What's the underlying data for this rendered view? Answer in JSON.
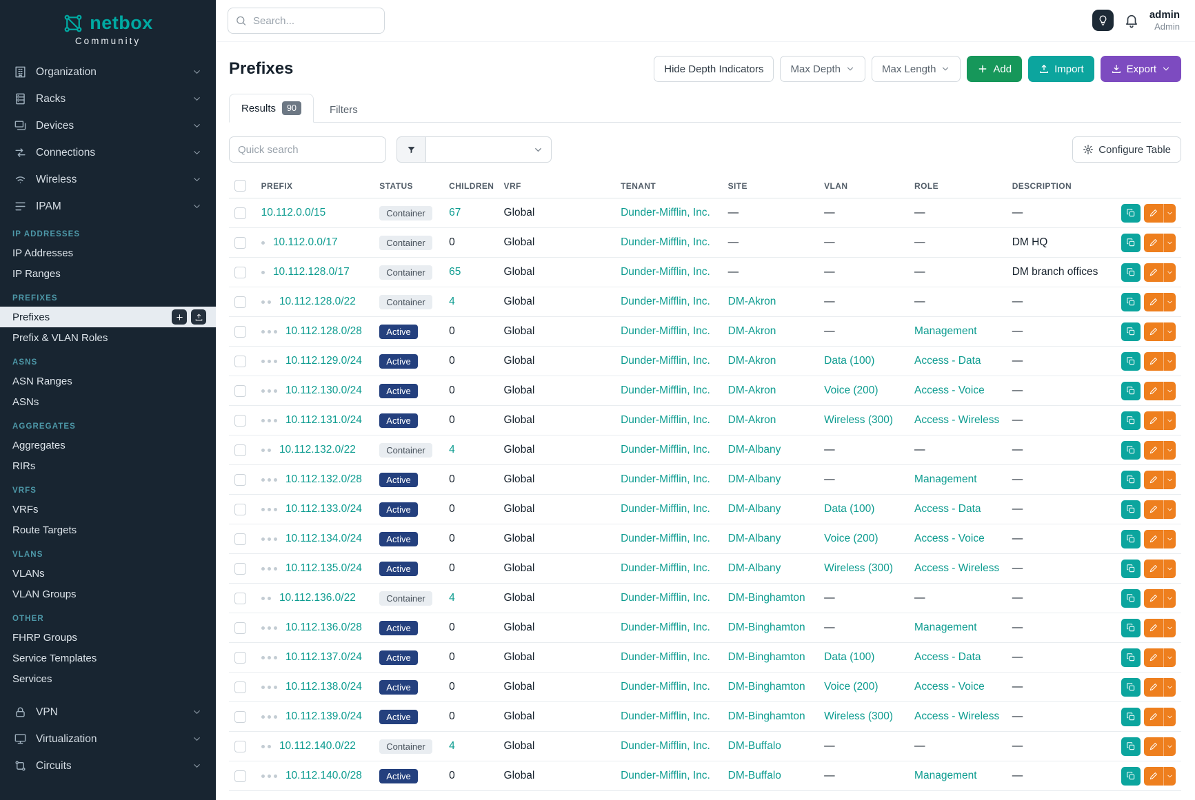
{
  "colors": {
    "brand_teal": "#00a9a2",
    "link_teal": "#0d9c90",
    "add_green": "#16975a",
    "import_teal": "#0ca59e",
    "export_purple": "#7d4bc0",
    "active_badge": "#24407e",
    "edit_orange": "#ee7f1e",
    "section_teal": "#4d98a8"
  },
  "sidebar": {
    "logo_text": "netbox",
    "logo_subtext": "Community",
    "top_nav": [
      {
        "label": "Organization",
        "icon": "building-icon"
      },
      {
        "label": "Racks",
        "icon": "rack-icon"
      },
      {
        "label": "Devices",
        "icon": "devices-icon"
      },
      {
        "label": "Connections",
        "icon": "connections-icon"
      },
      {
        "label": "Wireless",
        "icon": "wireless-icon"
      },
      {
        "label": "IPAM",
        "icon": "ipam-icon"
      }
    ],
    "sections": [
      {
        "title": "IP ADDRESSES",
        "items": [
          {
            "label": "IP Addresses"
          },
          {
            "label": "IP Ranges"
          }
        ]
      },
      {
        "title": "PREFIXES",
        "items": [
          {
            "label": "Prefixes",
            "active": true,
            "quick_actions": [
              "plus-icon",
              "upload-icon"
            ]
          },
          {
            "label": "Prefix & VLAN Roles"
          }
        ]
      },
      {
        "title": "ASNS",
        "items": [
          {
            "label": "ASN Ranges"
          },
          {
            "label": "ASNs"
          }
        ]
      },
      {
        "title": "AGGREGATES",
        "items": [
          {
            "label": "Aggregates"
          },
          {
            "label": "RIRs"
          }
        ]
      },
      {
        "title": "VRFS",
        "items": [
          {
            "label": "VRFs"
          },
          {
            "label": "Route Targets"
          }
        ]
      },
      {
        "title": "VLANS",
        "items": [
          {
            "label": "VLANs"
          },
          {
            "label": "VLAN Groups"
          }
        ]
      },
      {
        "title": "OTHER",
        "items": [
          {
            "label": "FHRP Groups"
          },
          {
            "label": "Service Templates"
          },
          {
            "label": "Services"
          }
        ]
      }
    ],
    "bottom_nav": [
      {
        "label": "VPN",
        "icon": "vpn-icon"
      },
      {
        "label": "Virtualization",
        "icon": "virtualization-icon"
      },
      {
        "label": "Circuits",
        "icon": "circuits-icon"
      }
    ]
  },
  "topbar": {
    "search_placeholder": "Search...",
    "username": "admin",
    "role": "Admin"
  },
  "page": {
    "title": "Prefixes",
    "buttons": {
      "hide_depth": "Hide Depth Indicators",
      "max_depth": "Max Depth",
      "max_length": "Max Length",
      "add": "Add",
      "import": "Import",
      "export": "Export"
    },
    "tabs": [
      {
        "label": "Results",
        "badge": "90",
        "active": true
      },
      {
        "label": "Filters"
      }
    ],
    "quick_search_placeholder": "Quick search",
    "configure_table": "Configure Table"
  },
  "table": {
    "columns": [
      "PREFIX",
      "STATUS",
      "CHILDREN",
      "VRF",
      "TENANT",
      "SITE",
      "VLAN",
      "ROLE",
      "DESCRIPTION"
    ],
    "rows": [
      {
        "depth": 0,
        "prefix": "10.112.0.0/15",
        "status": "Container",
        "children": "67",
        "vrf": "Global",
        "tenant": "Dunder-Mifflin, Inc.",
        "site": "—",
        "vlan": "—",
        "role": "—",
        "description": "—"
      },
      {
        "depth": 1,
        "prefix": "10.112.0.0/17",
        "status": "Container",
        "children": "0",
        "vrf": "Global",
        "tenant": "Dunder-Mifflin, Inc.",
        "site": "—",
        "vlan": "—",
        "role": "—",
        "description": "DM HQ"
      },
      {
        "depth": 1,
        "prefix": "10.112.128.0/17",
        "status": "Container",
        "children": "65",
        "vrf": "Global",
        "tenant": "Dunder-Mifflin, Inc.",
        "site": "—",
        "vlan": "—",
        "role": "—",
        "description": "DM branch offices"
      },
      {
        "depth": 2,
        "prefix": "10.112.128.0/22",
        "status": "Container",
        "children": "4",
        "vrf": "Global",
        "tenant": "Dunder-Mifflin, Inc.",
        "site": "DM-Akron",
        "vlan": "—",
        "role": "—",
        "description": "—"
      },
      {
        "depth": 3,
        "prefix": "10.112.128.0/28",
        "status": "Active",
        "children": "0",
        "vrf": "Global",
        "tenant": "Dunder-Mifflin, Inc.",
        "site": "DM-Akron",
        "vlan": "—",
        "role": "Management",
        "description": "—"
      },
      {
        "depth": 3,
        "prefix": "10.112.129.0/24",
        "status": "Active",
        "children": "0",
        "vrf": "Global",
        "tenant": "Dunder-Mifflin, Inc.",
        "site": "DM-Akron",
        "vlan": "Data (100)",
        "role": "Access - Data",
        "description": "—"
      },
      {
        "depth": 3,
        "prefix": "10.112.130.0/24",
        "status": "Active",
        "children": "0",
        "vrf": "Global",
        "tenant": "Dunder-Mifflin, Inc.",
        "site": "DM-Akron",
        "vlan": "Voice (200)",
        "role": "Access - Voice",
        "description": "—"
      },
      {
        "depth": 3,
        "prefix": "10.112.131.0/24",
        "status": "Active",
        "children": "0",
        "vrf": "Global",
        "tenant": "Dunder-Mifflin, Inc.",
        "site": "DM-Akron",
        "vlan": "Wireless (300)",
        "role": "Access - Wireless",
        "description": "—"
      },
      {
        "depth": 2,
        "prefix": "10.112.132.0/22",
        "status": "Container",
        "children": "4",
        "vrf": "Global",
        "tenant": "Dunder-Mifflin, Inc.",
        "site": "DM-Albany",
        "vlan": "—",
        "role": "—",
        "description": "—"
      },
      {
        "depth": 3,
        "prefix": "10.112.132.0/28",
        "status": "Active",
        "children": "0",
        "vrf": "Global",
        "tenant": "Dunder-Mifflin, Inc.",
        "site": "DM-Albany",
        "vlan": "—",
        "role": "Management",
        "description": "—"
      },
      {
        "depth": 3,
        "prefix": "10.112.133.0/24",
        "status": "Active",
        "children": "0",
        "vrf": "Global",
        "tenant": "Dunder-Mifflin, Inc.",
        "site": "DM-Albany",
        "vlan": "Data (100)",
        "role": "Access - Data",
        "description": "—"
      },
      {
        "depth": 3,
        "prefix": "10.112.134.0/24",
        "status": "Active",
        "children": "0",
        "vrf": "Global",
        "tenant": "Dunder-Mifflin, Inc.",
        "site": "DM-Albany",
        "vlan": "Voice (200)",
        "role": "Access - Voice",
        "description": "—"
      },
      {
        "depth": 3,
        "prefix": "10.112.135.0/24",
        "status": "Active",
        "children": "0",
        "vrf": "Global",
        "tenant": "Dunder-Mifflin, Inc.",
        "site": "DM-Albany",
        "vlan": "Wireless (300)",
        "role": "Access - Wireless",
        "description": "—"
      },
      {
        "depth": 2,
        "prefix": "10.112.136.0/22",
        "status": "Container",
        "children": "4",
        "vrf": "Global",
        "tenant": "Dunder-Mifflin, Inc.",
        "site": "DM-Binghamton",
        "vlan": "—",
        "role": "—",
        "description": "—"
      },
      {
        "depth": 3,
        "prefix": "10.112.136.0/28",
        "status": "Active",
        "children": "0",
        "vrf": "Global",
        "tenant": "Dunder-Mifflin, Inc.",
        "site": "DM-Binghamton",
        "vlan": "—",
        "role": "Management",
        "description": "—"
      },
      {
        "depth": 3,
        "prefix": "10.112.137.0/24",
        "status": "Active",
        "children": "0",
        "vrf": "Global",
        "tenant": "Dunder-Mifflin, Inc.",
        "site": "DM-Binghamton",
        "vlan": "Data (100)",
        "role": "Access - Data",
        "description": "—"
      },
      {
        "depth": 3,
        "prefix": "10.112.138.0/24",
        "status": "Active",
        "children": "0",
        "vrf": "Global",
        "tenant": "Dunder-Mifflin, Inc.",
        "site": "DM-Binghamton",
        "vlan": "Voice (200)",
        "role": "Access - Voice",
        "description": "—"
      },
      {
        "depth": 3,
        "prefix": "10.112.139.0/24",
        "status": "Active",
        "children": "0",
        "vrf": "Global",
        "tenant": "Dunder-Mifflin, Inc.",
        "site": "DM-Binghamton",
        "vlan": "Wireless (300)",
        "role": "Access - Wireless",
        "description": "—"
      },
      {
        "depth": 2,
        "prefix": "10.112.140.0/22",
        "status": "Container",
        "children": "4",
        "vrf": "Global",
        "tenant": "Dunder-Mifflin, Inc.",
        "site": "DM-Buffalo",
        "vlan": "—",
        "role": "—",
        "description": "—"
      },
      {
        "depth": 3,
        "prefix": "10.112.140.0/28",
        "status": "Active",
        "children": "0",
        "vrf": "Global",
        "tenant": "Dunder-Mifflin, Inc.",
        "site": "DM-Buffalo",
        "vlan": "—",
        "role": "Management",
        "description": "—"
      }
    ]
  }
}
